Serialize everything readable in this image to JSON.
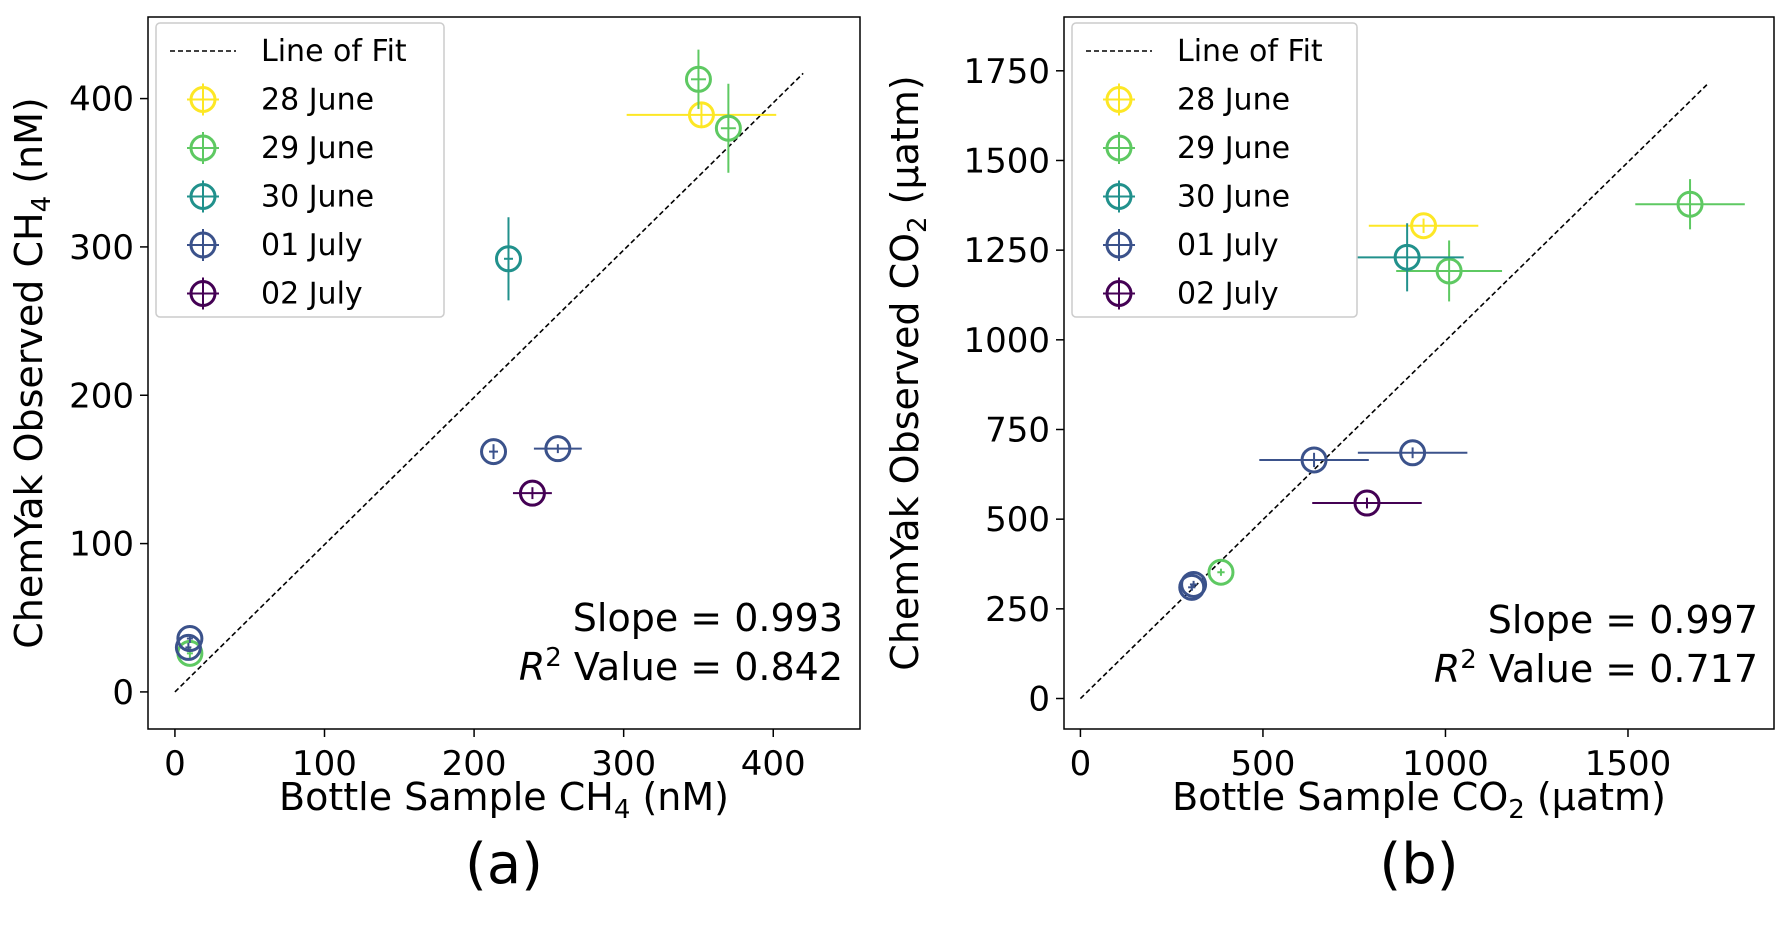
{
  "series_colors": {
    "28 June": "#fde725",
    "29 June": "#5ec962",
    "30 June": "#21918c",
    "01 July": "#3b528b",
    "02 July": "#440154"
  },
  "chart_data": [
    {
      "type": "scatter",
      "panel_label": "(a)",
      "xlabel": {
        "pre": "Bottle Sample CH",
        "sub": "4",
        "post": " (nM)"
      },
      "ylabel": {
        "pre": "ChemYak Observed CH",
        "sub": "4",
        "post": " (nM)"
      },
      "xlim": [
        -18,
        458
      ],
      "ylim": [
        -25,
        455
      ],
      "xticks": [
        0,
        100,
        200,
        300,
        400
      ],
      "yticks": [
        0,
        100,
        200,
        300,
        400
      ],
      "legend": {
        "position": "top-left",
        "fit_label": "Line of Fit",
        "entries": [
          "28 June",
          "29 June",
          "30 June",
          "01 July",
          "02 July"
        ]
      },
      "fit_line": {
        "x": [
          0,
          420
        ],
        "y": [
          0,
          417
        ]
      },
      "stats": {
        "slope_text": "Slope = 0.993",
        "r2_prefix": "R",
        "r2_sup": "2",
        "r2_suffix": " Value = 0.842"
      },
      "series": [
        {
          "name": "28 June",
          "points": [
            {
              "x": 352,
              "y": 389,
              "xerr": 50,
              "yerr": 8
            }
          ]
        },
        {
          "name": "29 June",
          "points": [
            {
              "x": 350,
              "y": 413,
              "xerr": 5,
              "yerr": 20
            },
            {
              "x": 370,
              "y": 380,
              "xerr": 5,
              "yerr": 30
            },
            {
              "x": 10,
              "y": 26,
              "xerr": 2,
              "yerr": 4
            }
          ]
        },
        {
          "name": "30 June",
          "points": [
            {
              "x": 223,
              "y": 292,
              "xerr": 3,
              "yerr": 28
            }
          ]
        },
        {
          "name": "01 July",
          "points": [
            {
              "x": 213,
              "y": 162,
              "xerr": 3,
              "yerr": 5
            },
            {
              "x": 256,
              "y": 164,
              "xerr": 16,
              "yerr": 3
            },
            {
              "x": 10,
              "y": 36,
              "xerr": 2,
              "yerr": 3
            },
            {
              "x": 9,
              "y": 30,
              "xerr": 2,
              "yerr": 3
            }
          ]
        },
        {
          "name": "02 July",
          "points": [
            {
              "x": 239,
              "y": 134,
              "xerr": 13,
              "yerr": 4
            }
          ]
        }
      ]
    },
    {
      "type": "scatter",
      "panel_label": "(b)",
      "xlabel": {
        "pre": "Bottle Sample CO",
        "sub": "2",
        "post": " (µatm)"
      },
      "ylabel": {
        "pre": "ChemYak Observed CO",
        "sub": "2",
        "post": " (µatm)"
      },
      "xlim": [
        -45,
        1900
      ],
      "ylim": [
        -85,
        1900
      ],
      "xticks": [
        0,
        500,
        1000,
        1500
      ],
      "yticks": [
        0,
        250,
        500,
        750,
        1000,
        1250,
        1500,
        1750
      ],
      "legend": {
        "position": "top-left",
        "fit_label": "Line of Fit",
        "entries": [
          "28 June",
          "29 June",
          "30 June",
          "01 July",
          "02 July"
        ]
      },
      "fit_line": {
        "x": [
          0,
          1720
        ],
        "y": [
          0,
          1715
        ]
      },
      "stats": {
        "slope_text": "Slope = 0.997",
        "r2_prefix": "R",
        "r2_sup": "2",
        "r2_suffix": " Value = 0.717"
      },
      "series": [
        {
          "name": "28 June",
          "points": [
            {
              "x": 940,
              "y": 1318,
              "xerr": 150,
              "yerr": 20
            }
          ]
        },
        {
          "name": "29 June",
          "points": [
            {
              "x": 1670,
              "y": 1378,
              "xerr": 150,
              "yerr": 70
            },
            {
              "x": 1010,
              "y": 1192,
              "xerr": 145,
              "yerr": 85
            },
            {
              "x": 385,
              "y": 352,
              "xerr": 10,
              "yerr": 10
            }
          ]
        },
        {
          "name": "30 June",
          "points": [
            {
              "x": 895,
              "y": 1230,
              "xerr": 155,
              "yerr": 95
            }
          ]
        },
        {
          "name": "01 July",
          "points": [
            {
              "x": 640,
              "y": 665,
              "xerr": 150,
              "yerr": 20
            },
            {
              "x": 910,
              "y": 685,
              "xerr": 150,
              "yerr": 15
            },
            {
              "x": 310,
              "y": 318,
              "xerr": 10,
              "yerr": 10
            },
            {
              "x": 305,
              "y": 310,
              "xerr": 10,
              "yerr": 10
            }
          ]
        },
        {
          "name": "02 July",
          "points": [
            {
              "x": 785,
              "y": 545,
              "xerr": 150,
              "yerr": 15
            }
          ]
        }
      ]
    }
  ]
}
